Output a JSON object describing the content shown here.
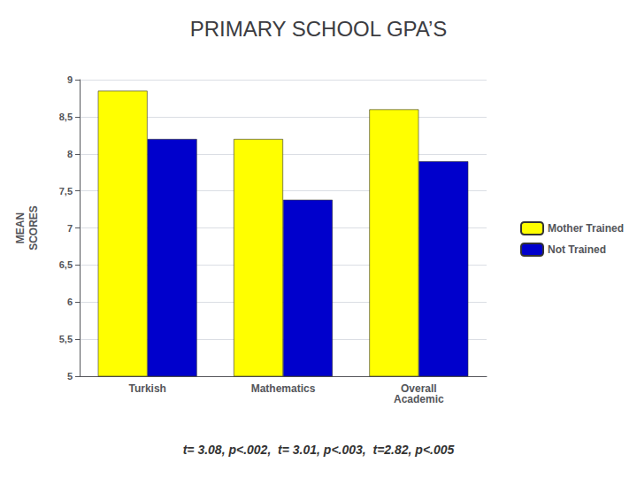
{
  "chart_data": {
    "type": "bar",
    "title": "PRIMARY SCHOOL GPA’S",
    "ylabel": "MEAN\nSCORES",
    "categories": [
      "Turkish",
      "Mathematics",
      "Overall\nAcademic"
    ],
    "series": [
      {
        "name": "Mother Trained",
        "color": "#FFFF00",
        "values": [
          8.85,
          8.2,
          8.6
        ]
      },
      {
        "name": "Not Trained",
        "color": "#0000CC",
        "values": [
          8.2,
          7.38,
          7.9
        ]
      }
    ],
    "ylim": [
      5,
      9
    ],
    "yticks": [
      5,
      {
        "value": 5.5,
        "label": "5,5"
      },
      6,
      {
        "value": 6.5,
        "label": "6,5"
      },
      7,
      {
        "value": 7.5,
        "label": "7,5"
      },
      8,
      {
        "value": 8.5,
        "label": "8,5"
      },
      9
    ],
    "grid": true,
    "legend": "right",
    "annotations": [
      "t= 3.08, p<.002,  t= 3.01, p<.003,  t=2.82, p<.005"
    ]
  }
}
